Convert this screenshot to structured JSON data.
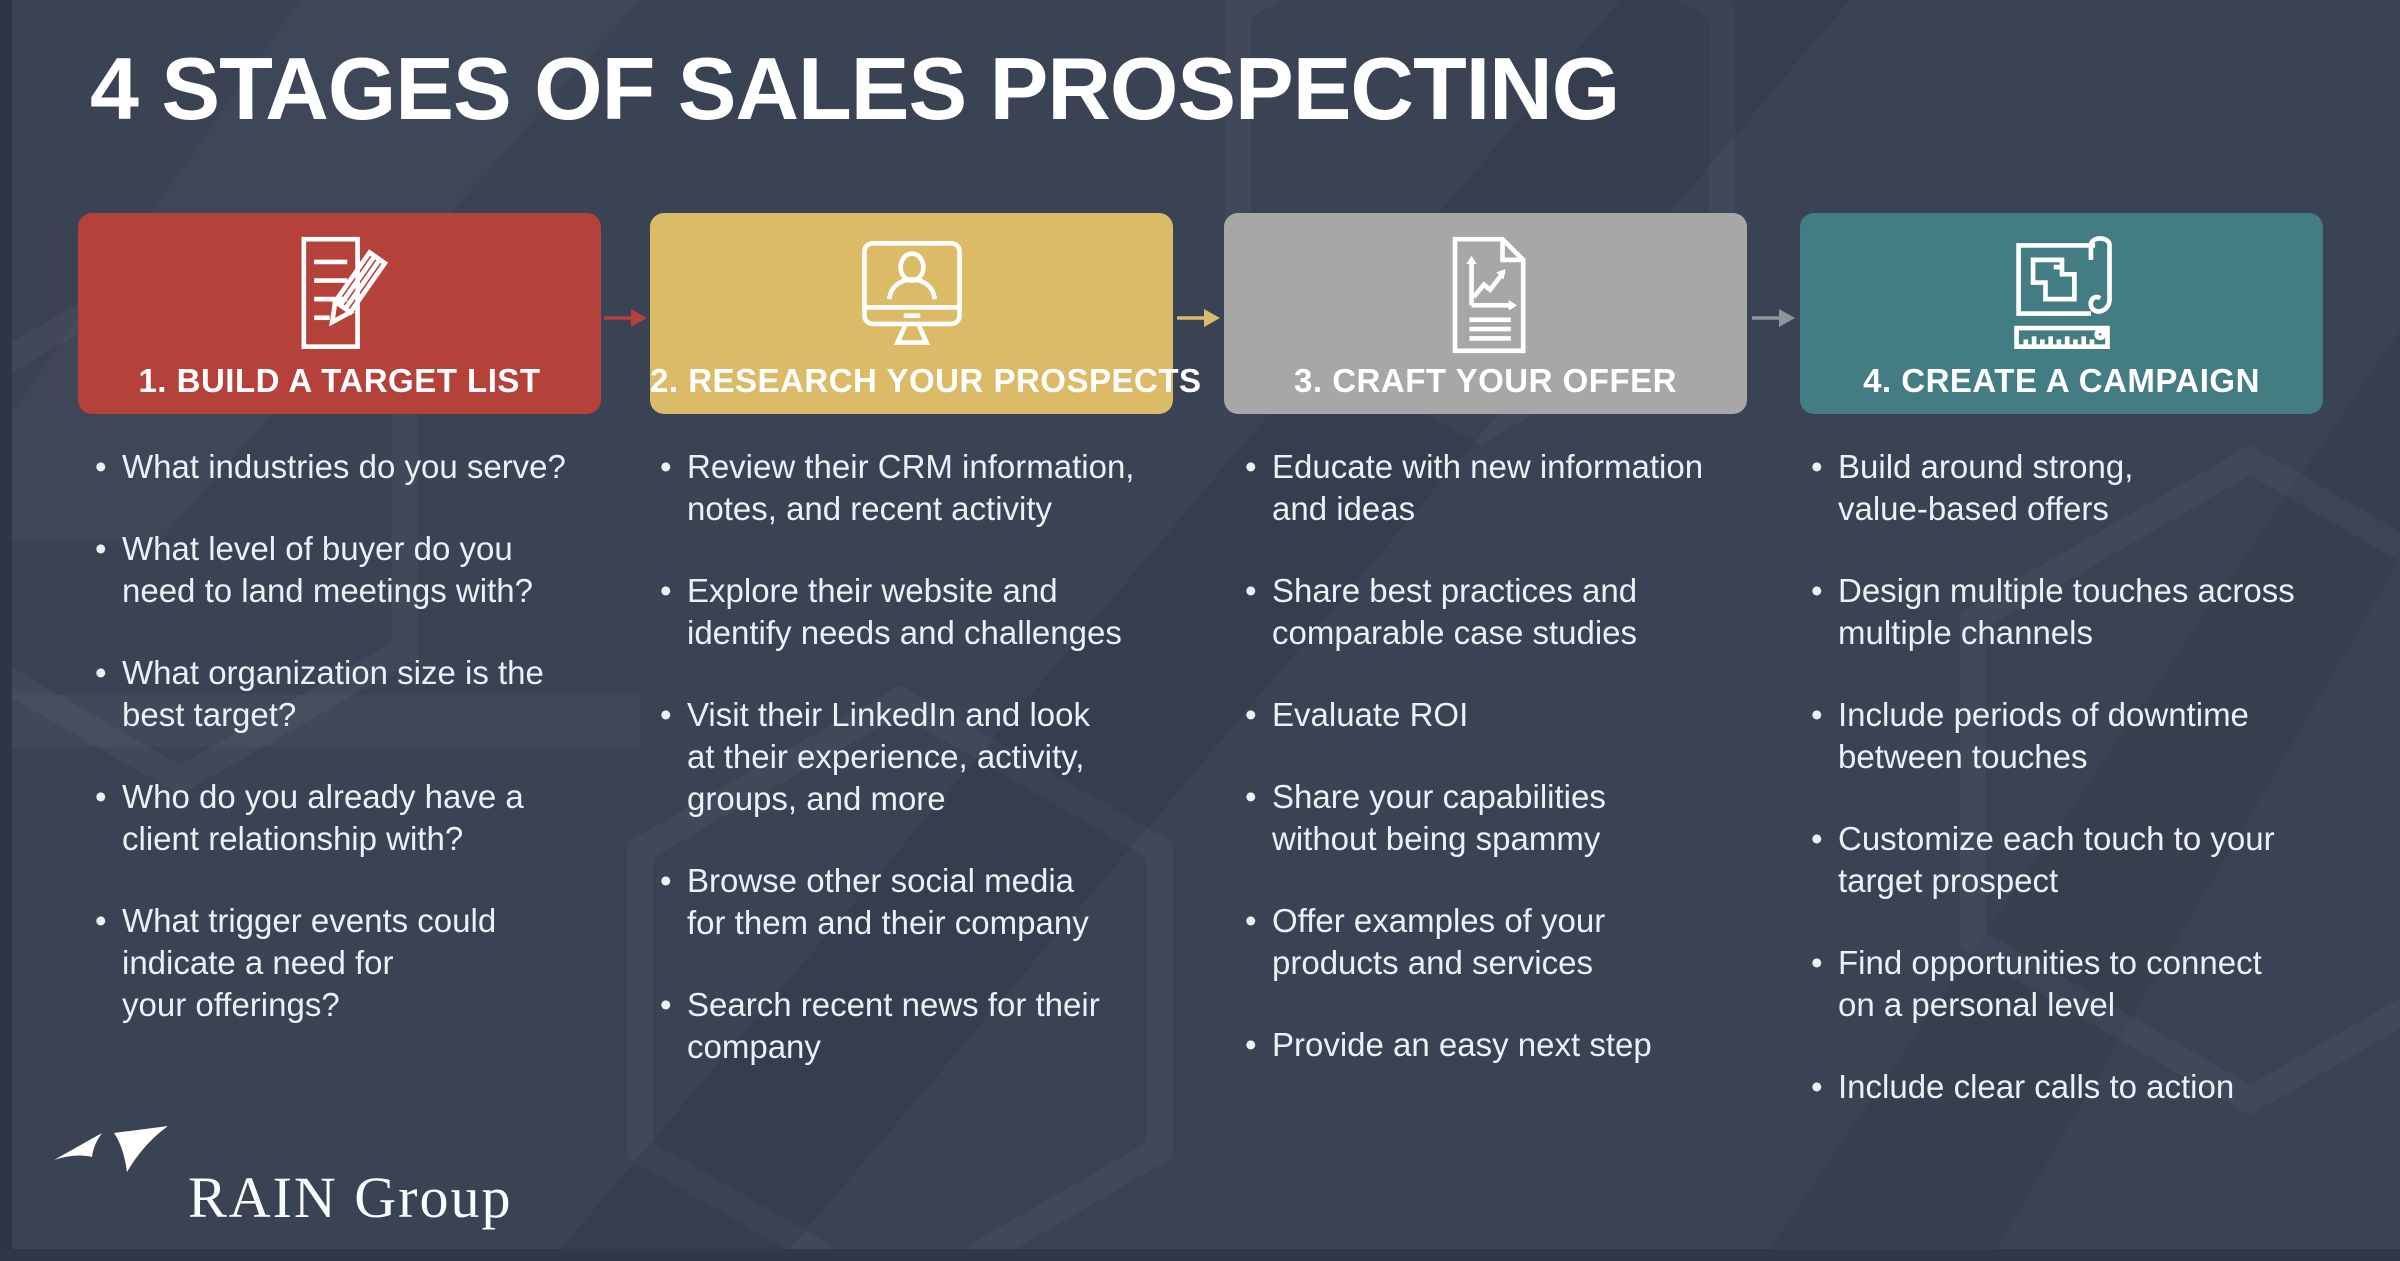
{
  "title": "4 STAGES OF SALES PROSPECTING",
  "colors": {
    "background": "#3A4354",
    "stage_red": "#B5413B",
    "stage_gold": "#DCBB68",
    "stage_gray": "#A7A7A7",
    "stage_teal": "#447C83",
    "bullet_text": "#ECEFF3",
    "title_text": "#FFFFFF",
    "gray_arrow": "#8E949B"
  },
  "stages": [
    {
      "id": "build-a-target-list",
      "label": "1. BUILD A TARGET LIST",
      "color": "#B5413B",
      "icon": "list-and-pencil-icon",
      "arrow_after": true,
      "arrow_color": "#B5413B",
      "bullets": [
        [
          "What industries do you serve?"
        ],
        [
          "What level of buyer do you",
          "need to land meetings with?"
        ],
        [
          "What organization size is the",
          "best target?"
        ],
        [
          "Who do you already have a",
          "client relationship with?"
        ],
        [
          "What trigger events could",
          "indicate a need for",
          "your offerings?"
        ]
      ]
    },
    {
      "id": "research-your-prospects",
      "label": "2. RESEARCH YOUR PROSPECTS",
      "color": "#DCBB68",
      "icon": "monitor-person-icon",
      "arrow_after": true,
      "arrow_color": "#DCBB68",
      "bullets": [
        [
          "Review their CRM information,",
          "notes, and recent activity"
        ],
        [
          "Explore their website and",
          "identify needs and challenges"
        ],
        [
          "Visit their LinkedIn and look",
          "at their experience, activity,",
          "groups, and more"
        ],
        [
          "Browse other social media",
          "for them and their company"
        ],
        [
          "Search recent news for their",
          "company"
        ]
      ]
    },
    {
      "id": "craft-your-offer",
      "label": "3. CRAFT YOUR OFFER",
      "color": "#A7A7A7",
      "icon": "chart-document-icon",
      "arrow_after": true,
      "arrow_color": "#8E949B",
      "bullets": [
        [
          "Educate with new information",
          "and ideas"
        ],
        [
          "Share best practices and",
          "comparable case studies"
        ],
        [
          "Evaluate ROI"
        ],
        [
          "Share your capabilities",
          "without being spammy"
        ],
        [
          "Offer examples of your",
          "products and services"
        ],
        [
          "Provide an easy next step"
        ]
      ]
    },
    {
      "id": "create-a-campaign",
      "label": "4. CREATE A CAMPAIGN",
      "color": "#447C83",
      "icon": "blueprint-ruler-icon",
      "arrow_after": false,
      "bullets": [
        [
          "Build around strong,",
          "value-based offers"
        ],
        [
          "Design multiple touches across",
          "multiple channels"
        ],
        [
          "Include periods of downtime",
          "between touches"
        ],
        [
          "Customize each touch to your",
          "target prospect"
        ],
        [
          "Find opportunities to connect",
          "on a personal level"
        ],
        [
          "Include clear calls to action"
        ]
      ]
    }
  ],
  "logo": {
    "text": "RAIN Group",
    "mark": "rain-group-swoosh-icon"
  }
}
